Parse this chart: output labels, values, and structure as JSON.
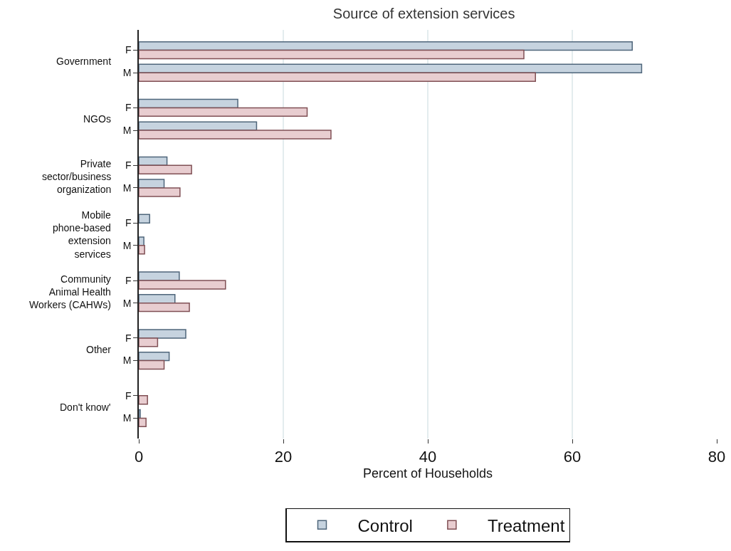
{
  "chart_data": {
    "type": "bar",
    "orientation": "horizontal",
    "title": "Source of extension services",
    "xlabel": "Percent of Households",
    "categories": [
      "F",
      "M",
      "F",
      "M",
      "F",
      "M",
      "F",
      "M",
      "F",
      "M",
      "F",
      "M",
      "F",
      "M"
    ],
    "series": [
      {
        "name": "Control",
        "color": "#c6d3df",
        "values": [
          68.3,
          69.6,
          13.7,
          16.3,
          3.9,
          3.5,
          1.5,
          0.7,
          5.6,
          5.0,
          6.5,
          4.2,
          0,
          0.2
        ]
      },
      {
        "name": "Treatment",
        "color": "#e8cdd0",
        "values": [
          53.3,
          54.9,
          23.3,
          26.6,
          7.3,
          5.7,
          0,
          0.8,
          12.0,
          7.0,
          2.6,
          3.5,
          1.2,
          1.0
        ]
      }
    ],
    "annotations": [
      "Government",
      "NGOs",
      "Private\nsector/business\norganization",
      "Mobile\nphone-based\nextension\nservices",
      "Community\nAnimal Health\nWorkers (CAHWs)",
      "Other",
      "Don't know'"
    ],
    "xlim": [
      0,
      80
    ],
    "xticks": [
      0,
      20,
      40,
      60,
      80
    ],
    "grid": "x",
    "legend": "bottom"
  }
}
